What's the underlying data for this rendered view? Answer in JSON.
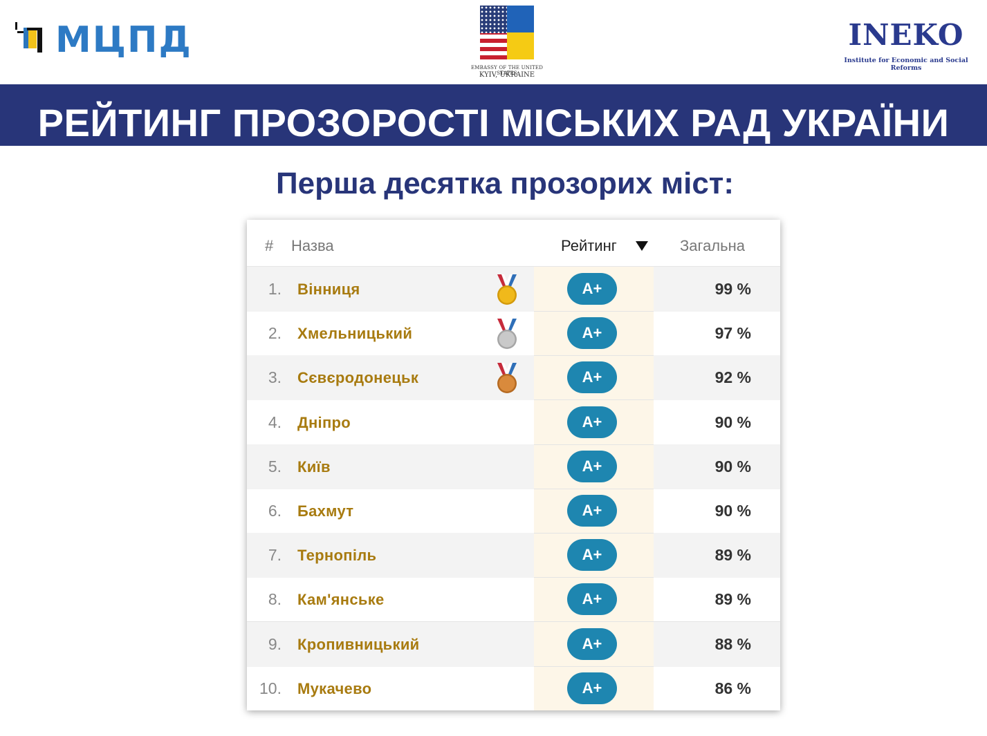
{
  "header": {
    "left_logo": {
      "text": "МЦПД",
      "colors": {
        "blue": "#2c76bc",
        "yellow": "#f2c21a",
        "black": "#111111"
      }
    },
    "center_logo": {
      "line1": "EMBASSY OF THE UNITED STATES",
      "line2": "KYIV, UKRAINE",
      "icon": "us-ukraine-flag-icon"
    },
    "right_logo": {
      "text": "INEKO",
      "tagline": "Institute for Economic and Social Reforms"
    }
  },
  "title": "РЕЙТИНГ ПРОЗОРОСТІ МІСЬКИХ РАД УКРАЇНИ",
  "subtitle": "Перша десятка прозорих міст:",
  "colors": {
    "title_band": "#283579",
    "city_text": "#a87b10",
    "badge": "#1e86b0",
    "rating_column": "#fdf6e8"
  },
  "table": {
    "headers": {
      "num": "#",
      "name": "Назва",
      "rating": "Рейтинг",
      "total": "Загальна"
    },
    "sort_icon": "sort-down-icon",
    "rows": [
      {
        "num": "1.",
        "city": "Вінниця",
        "rating": "A+",
        "total": "99 %",
        "medal": "gold"
      },
      {
        "num": "2.",
        "city": "Хмельницький",
        "rating": "A+",
        "total": "97 %",
        "medal": "silver"
      },
      {
        "num": "3.",
        "city": "Сєвєродонецьк",
        "rating": "A+",
        "total": "92 %",
        "medal": "bronze"
      },
      {
        "num": "4.",
        "city": "Дніпро",
        "rating": "A+",
        "total": "90 %",
        "medal": ""
      },
      {
        "num": "5.",
        "city": "Київ",
        "rating": "A+",
        "total": "90 %",
        "medal": ""
      },
      {
        "num": "6.",
        "city": "Бахмут",
        "rating": "A+",
        "total": "90 %",
        "medal": ""
      },
      {
        "num": "7.",
        "city": "Тернопіль",
        "rating": "A+",
        "total": "89 %",
        "medal": ""
      },
      {
        "num": "8.",
        "city": "Кам'янське",
        "rating": "A+",
        "total": "89 %",
        "medal": ""
      },
      {
        "num": "9.",
        "city": "Кропивницький",
        "rating": "A+",
        "total": "88 %",
        "medal": ""
      },
      {
        "num": "10.",
        "city": "Мукачево",
        "rating": "A+",
        "total": "86 %",
        "medal": ""
      }
    ]
  }
}
